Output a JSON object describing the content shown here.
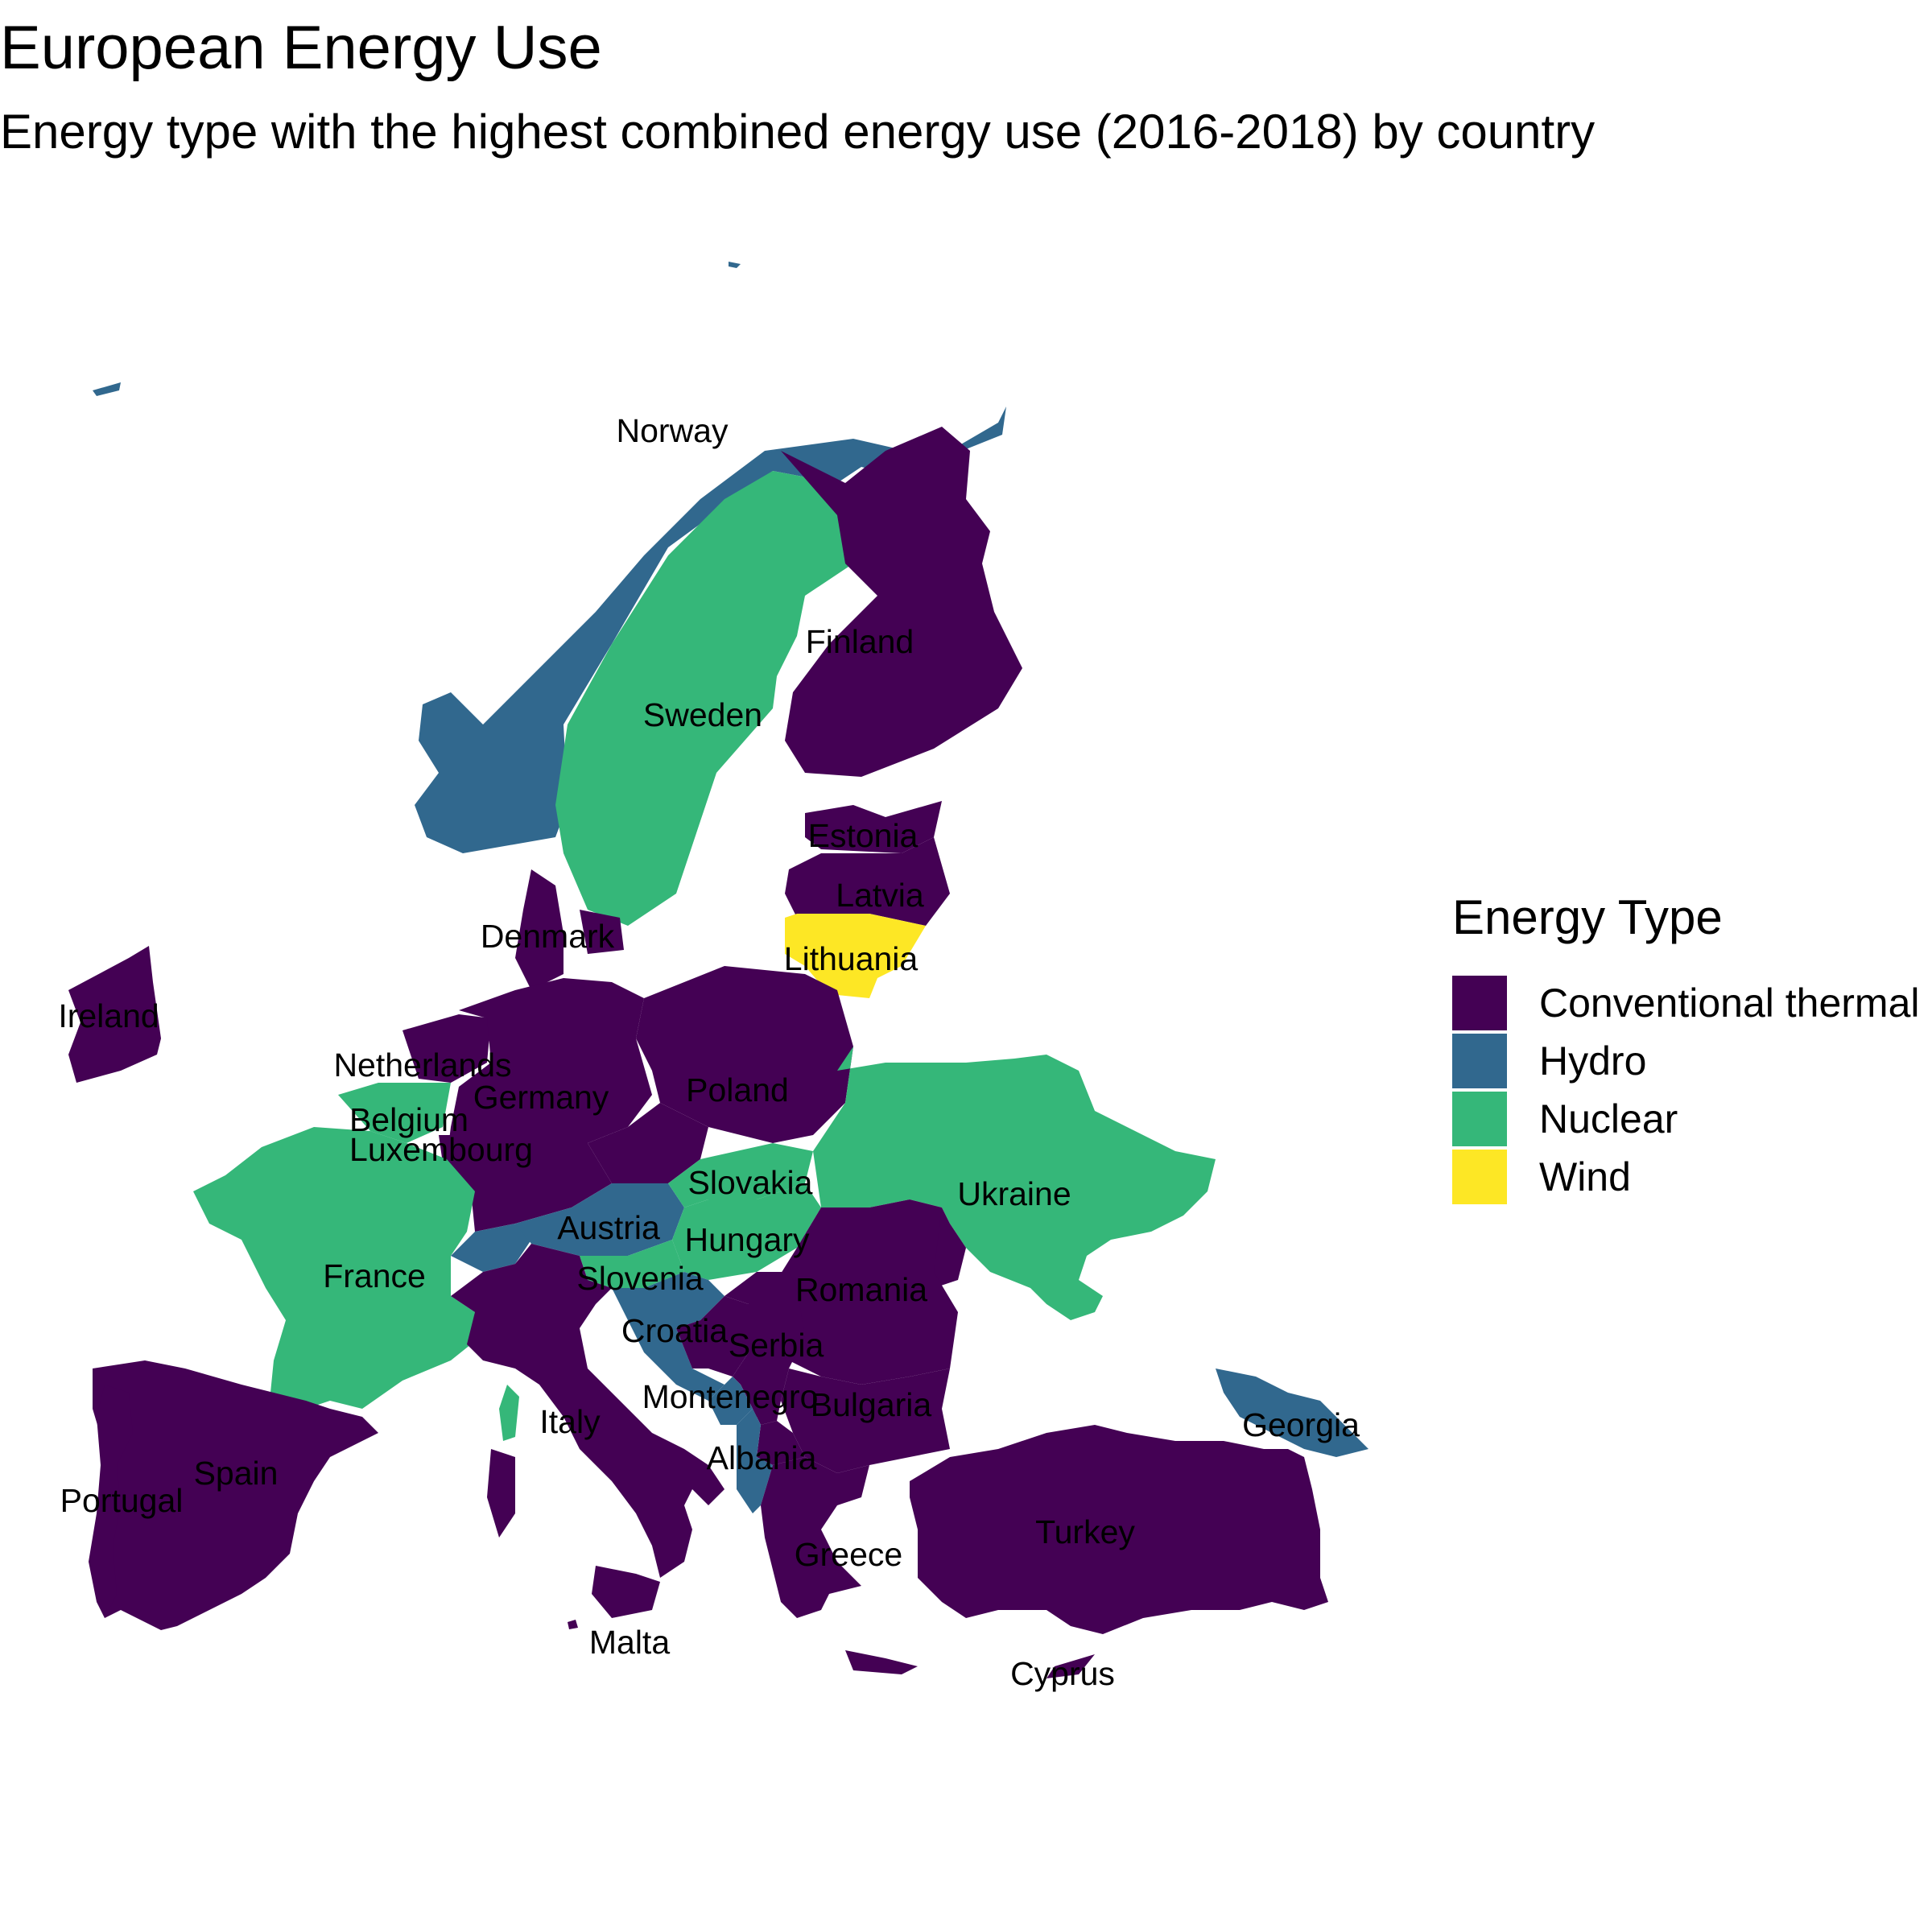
{
  "header": {
    "title": "European Energy Use",
    "subtitle": "Energy type with the highest combined energy use (2016-2018) by country"
  },
  "legend": {
    "title": "Energy Type",
    "items": [
      {
        "label": "Conventional thermal",
        "color": "#440154"
      },
      {
        "label": "Hydro",
        "color": "#31688E"
      },
      {
        "label": "Nuclear",
        "color": "#35B779"
      },
      {
        "label": "Wind",
        "color": "#FDE725"
      }
    ]
  },
  "countries": [
    {
      "name": "Norway",
      "energy_type": "Hydro"
    },
    {
      "name": "Sweden",
      "energy_type": "Nuclear"
    },
    {
      "name": "Finland",
      "energy_type": "Conventional thermal"
    },
    {
      "name": "Estonia",
      "energy_type": "Conventional thermal"
    },
    {
      "name": "Latvia",
      "energy_type": "Conventional thermal"
    },
    {
      "name": "Lithuania",
      "energy_type": "Wind"
    },
    {
      "name": "Denmark",
      "energy_type": "Conventional thermal"
    },
    {
      "name": "Ireland",
      "energy_type": "Conventional thermal"
    },
    {
      "name": "Netherlands",
      "energy_type": "Conventional thermal"
    },
    {
      "name": "Germany",
      "energy_type": "Conventional thermal"
    },
    {
      "name": "Poland",
      "energy_type": "Conventional thermal"
    },
    {
      "name": "Belgium",
      "energy_type": "Nuclear"
    },
    {
      "name": "Luxembourg",
      "energy_type": "Conventional thermal"
    },
    {
      "name": "France",
      "energy_type": "Nuclear"
    },
    {
      "name": "Slovakia",
      "energy_type": "Nuclear"
    },
    {
      "name": "Austria",
      "energy_type": "Hydro"
    },
    {
      "name": "Hungary",
      "energy_type": "Nuclear"
    },
    {
      "name": "Slovenia",
      "energy_type": "Nuclear"
    },
    {
      "name": "Ukraine",
      "energy_type": "Nuclear"
    },
    {
      "name": "Romania",
      "energy_type": "Conventional thermal"
    },
    {
      "name": "Croatia",
      "energy_type": "Hydro"
    },
    {
      "name": "Serbia",
      "energy_type": "Conventional thermal"
    },
    {
      "name": "Montenegro",
      "energy_type": "Hydro"
    },
    {
      "name": "Bulgaria",
      "energy_type": "Conventional thermal"
    },
    {
      "name": "Albania",
      "energy_type": "Hydro"
    },
    {
      "name": "Italy",
      "energy_type": "Conventional thermal"
    },
    {
      "name": "Spain",
      "energy_type": "Conventional thermal"
    },
    {
      "name": "Portugal",
      "energy_type": "Conventional thermal"
    },
    {
      "name": "Greece",
      "energy_type": "Conventional thermal"
    },
    {
      "name": "Turkey",
      "energy_type": "Conventional thermal"
    },
    {
      "name": "Georgia",
      "energy_type": "Hydro"
    },
    {
      "name": "Malta",
      "energy_type": "Conventional thermal"
    },
    {
      "name": "Cyprus",
      "energy_type": "Conventional thermal"
    }
  ]
}
